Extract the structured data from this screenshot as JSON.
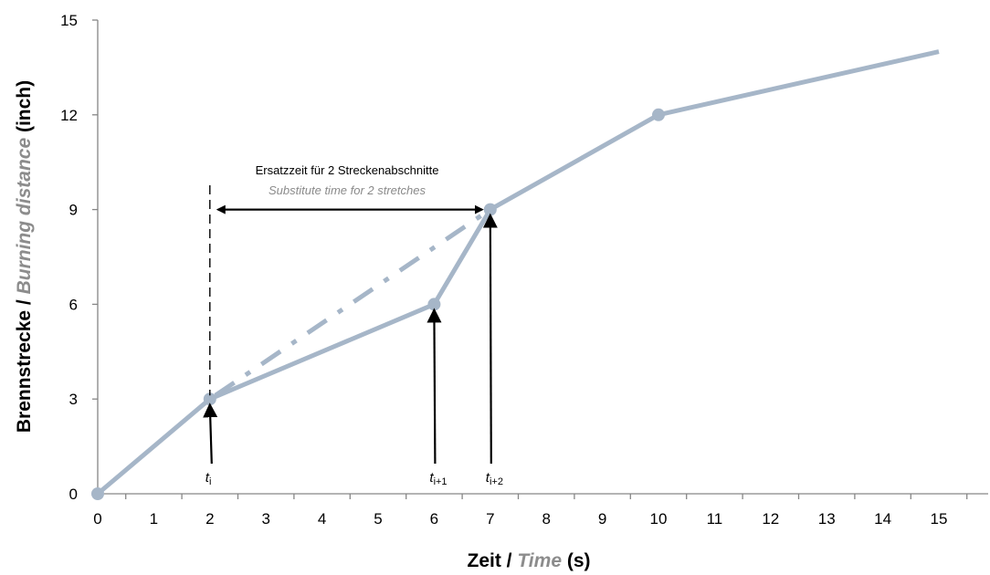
{
  "chart_data": {
    "type": "line",
    "x": [
      0,
      2,
      6,
      7,
      10,
      15
    ],
    "series": [
      {
        "values": [
          0,
          3,
          6,
          9,
          12,
          14
        ],
        "marker_indices": [
          0,
          1,
          2,
          3,
          4
        ]
      }
    ],
    "substitute_segment": {
      "x": [
        2,
        7
      ],
      "y": [
        3,
        9
      ],
      "style": "dash-dot"
    },
    "xlabel": {
      "de": "Zeit",
      "sep": " / ",
      "en": "Time",
      "unit": " (s)"
    },
    "ylabel": {
      "de": "Brennstrecke",
      "sep": " / ",
      "en": "Burning distance",
      "unit": " (inch)"
    },
    "xlim": [
      0,
      15
    ],
    "ylim": [
      0,
      15
    ],
    "xticks": [
      0,
      1,
      2,
      3,
      4,
      5,
      6,
      7,
      8,
      9,
      10,
      11,
      12,
      13,
      14,
      15
    ],
    "yticks": [
      0,
      3,
      6,
      9,
      12,
      15
    ],
    "grid": false,
    "annotations": {
      "title_de": "Ersatzzeit für 2 Streckenabschnitte",
      "title_en": "Substitute time for 2 stretches",
      "interval": {
        "from": 2,
        "to": 7
      },
      "markers": [
        {
          "x": 2,
          "y": 3,
          "base": "t",
          "sub": "i"
        },
        {
          "x": 6,
          "y": 6,
          "base": "t",
          "sub": "i+1"
        },
        {
          "x": 7,
          "y": 9,
          "base": "t",
          "sub": "i+2"
        }
      ]
    },
    "colors": {
      "line": "#a6b6c8",
      "axis": "#868686",
      "text_en": "#8c8c8c",
      "arrow": "#000000"
    }
  }
}
